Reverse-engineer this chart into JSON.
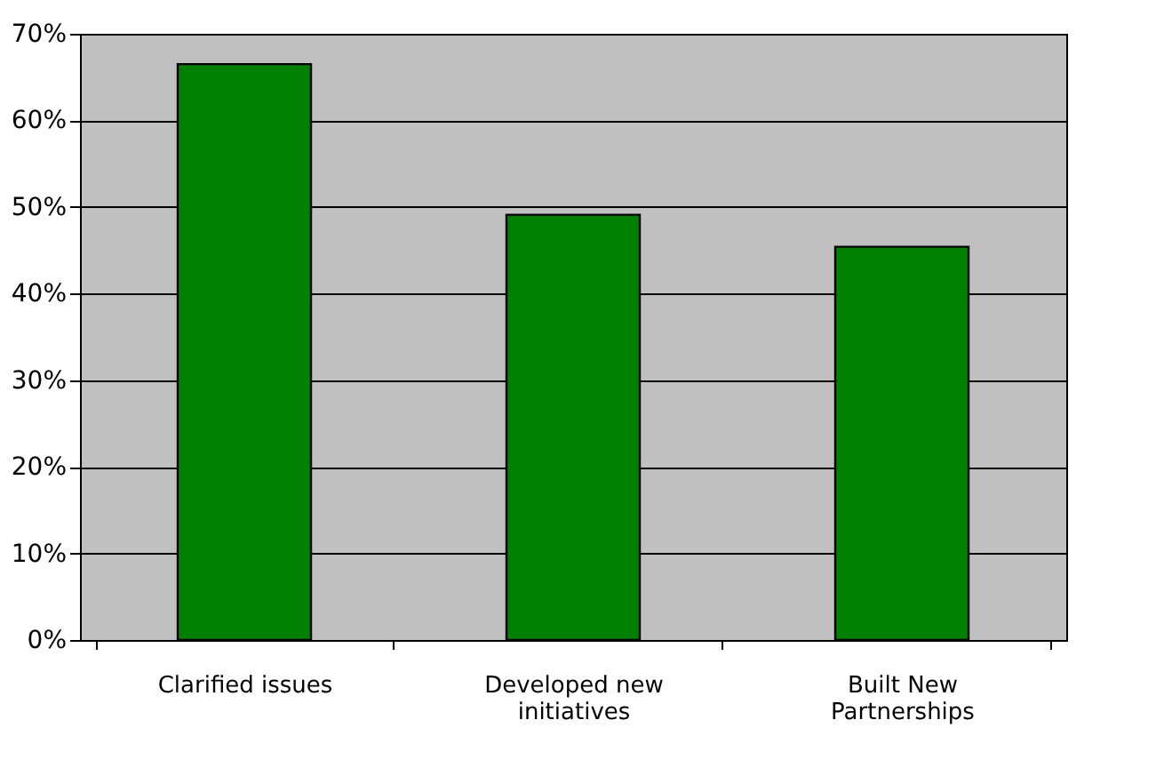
{
  "chart_data": {
    "type": "bar",
    "categories": [
      "Clarified issues",
      "Developed new initiatives",
      "Built New Partnerships"
    ],
    "values": [
      66.5,
      49.1,
      45.4
    ],
    "color": "#008000",
    "ylim": [
      0,
      70
    ],
    "yticks": [
      {
        "value": 0,
        "label": "0%"
      },
      {
        "value": 10,
        "label": "10%"
      },
      {
        "value": 20,
        "label": "20%"
      },
      {
        "value": 30,
        "label": "30%"
      },
      {
        "value": 40,
        "label": "40%"
      },
      {
        "value": 50,
        "label": "50%"
      },
      {
        "value": 60,
        "label": "60%"
      },
      {
        "value": 70,
        "label": "70%"
      }
    ],
    "grid": "y"
  }
}
